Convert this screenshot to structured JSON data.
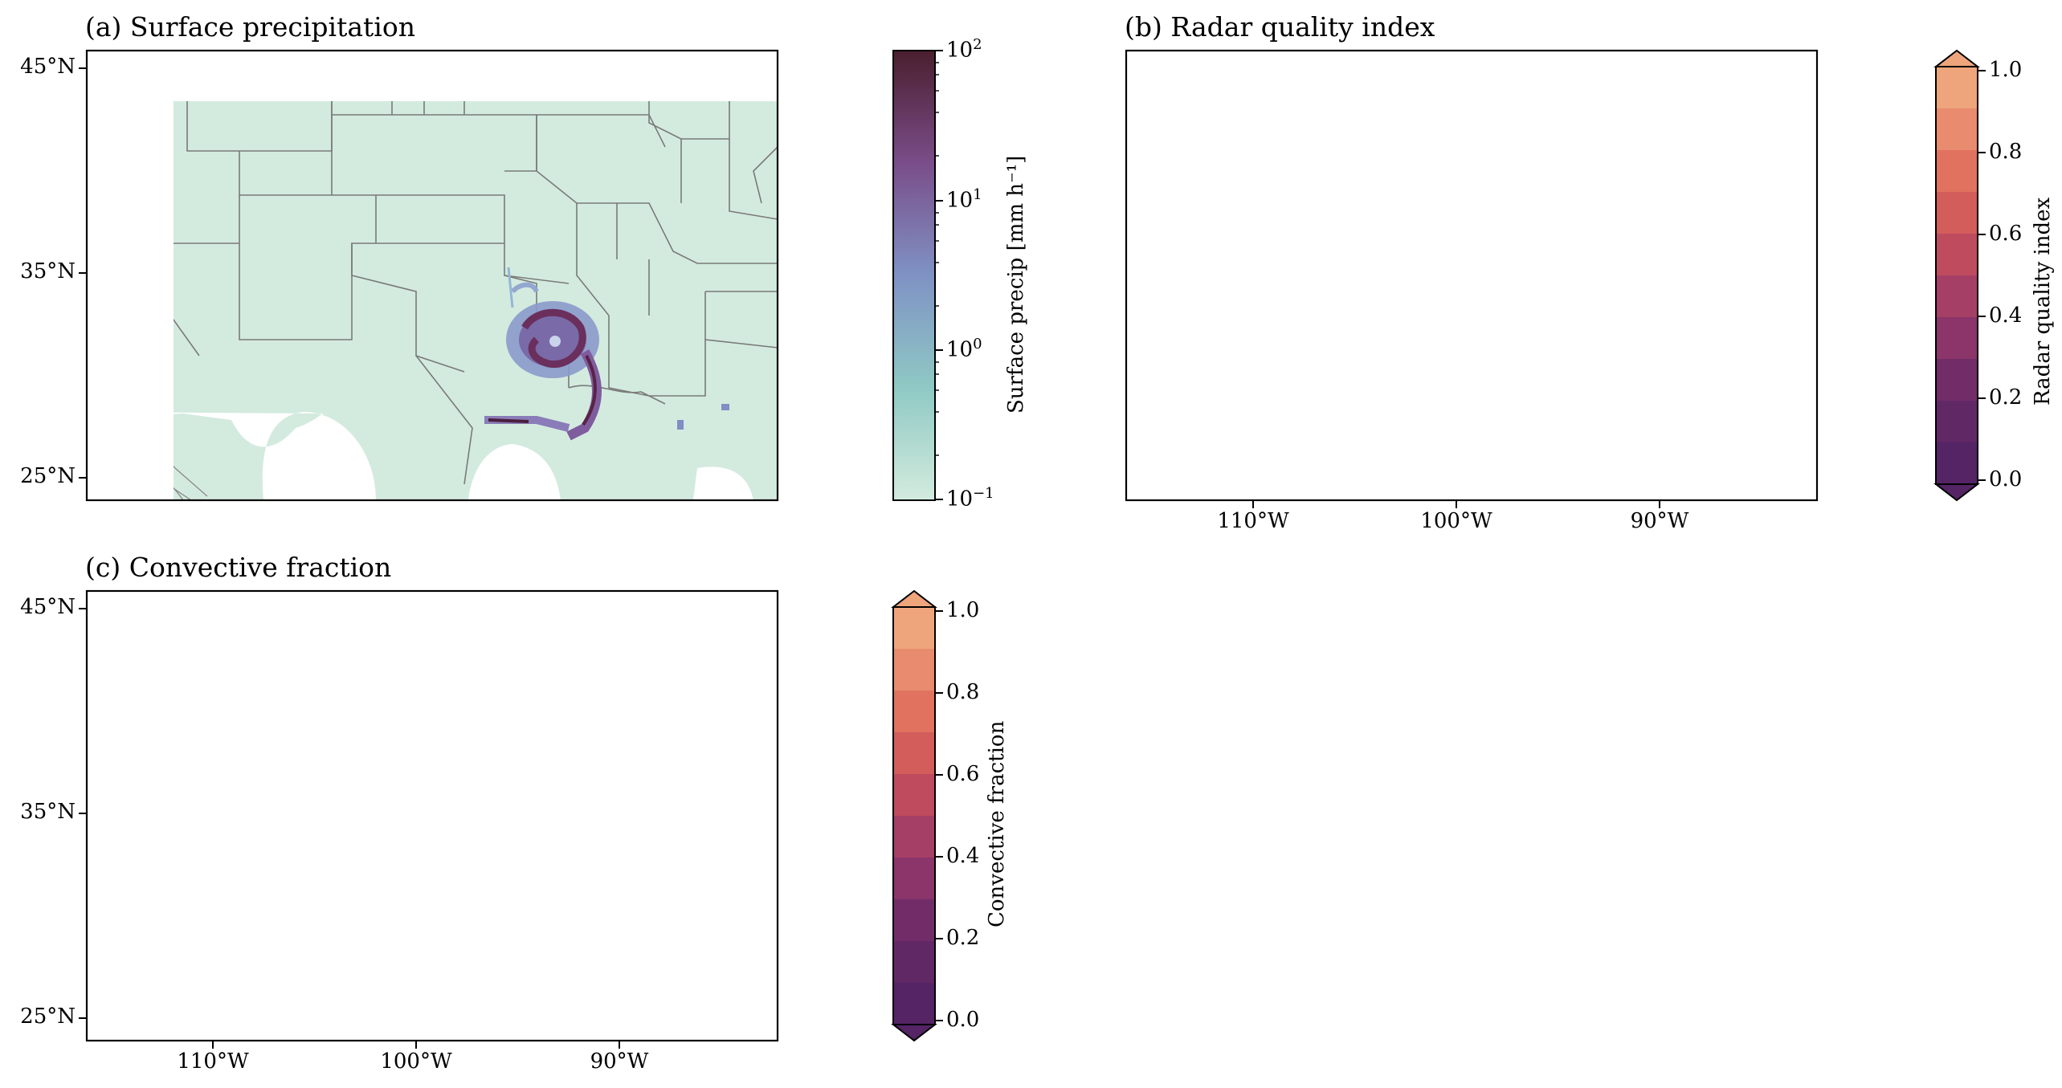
{
  "chart_data": [
    {
      "type": "heatmap",
      "title": "(a) Surface precipitation",
      "y_tick_labels": [
        "45°N",
        "35°N",
        "25°N"
      ],
      "x_tick_labels": [],
      "colorbar": {
        "label": "Surface precip [mm h⁻¹]",
        "scale": "log",
        "range": [
          0.1,
          100
        ],
        "ticks": [
          {
            "base": "10",
            "exp": "2"
          },
          {
            "base": "10",
            "exp": "1"
          },
          {
            "base": "10",
            "exp": "0"
          },
          {
            "base": "10",
            "exp": "−1"
          }
        ]
      },
      "colors": {
        "background": "#d3ebde",
        "low": "#7fa9c8",
        "mid": "#7a6aa8",
        "high": "#4a1f3e"
      }
    },
    {
      "type": "heatmap",
      "title": "(b) Radar quality index",
      "y_tick_labels": [],
      "x_tick_labels": [
        "110°W",
        "100°W",
        "90°W"
      ],
      "colorbar": {
        "label": "Radar quality index",
        "range": [
          0.0,
          1.0
        ],
        "ticks": [
          "1.0",
          "0.8",
          "0.6",
          "0.4",
          "0.2",
          "0.0"
        ],
        "extend": "both"
      },
      "colors": {
        "low": "#542465",
        "high": "#efa57c"
      }
    },
    {
      "type": "heatmap",
      "title": "(c) Convective fraction",
      "y_tick_labels": [
        "45°N",
        "35°N",
        "25°N"
      ],
      "x_tick_labels": [
        "110°W",
        "100°W",
        "90°W"
      ],
      "colorbar": {
        "label": "Convective fraction",
        "range": [
          0.0,
          1.0
        ],
        "ticks": [
          "1.0",
          "0.8",
          "0.6",
          "0.4",
          "0.2",
          "0.0"
        ],
        "extend": "max"
      },
      "colors": {
        "background": "#562466",
        "cells": "#f0a27c"
      }
    }
  ]
}
